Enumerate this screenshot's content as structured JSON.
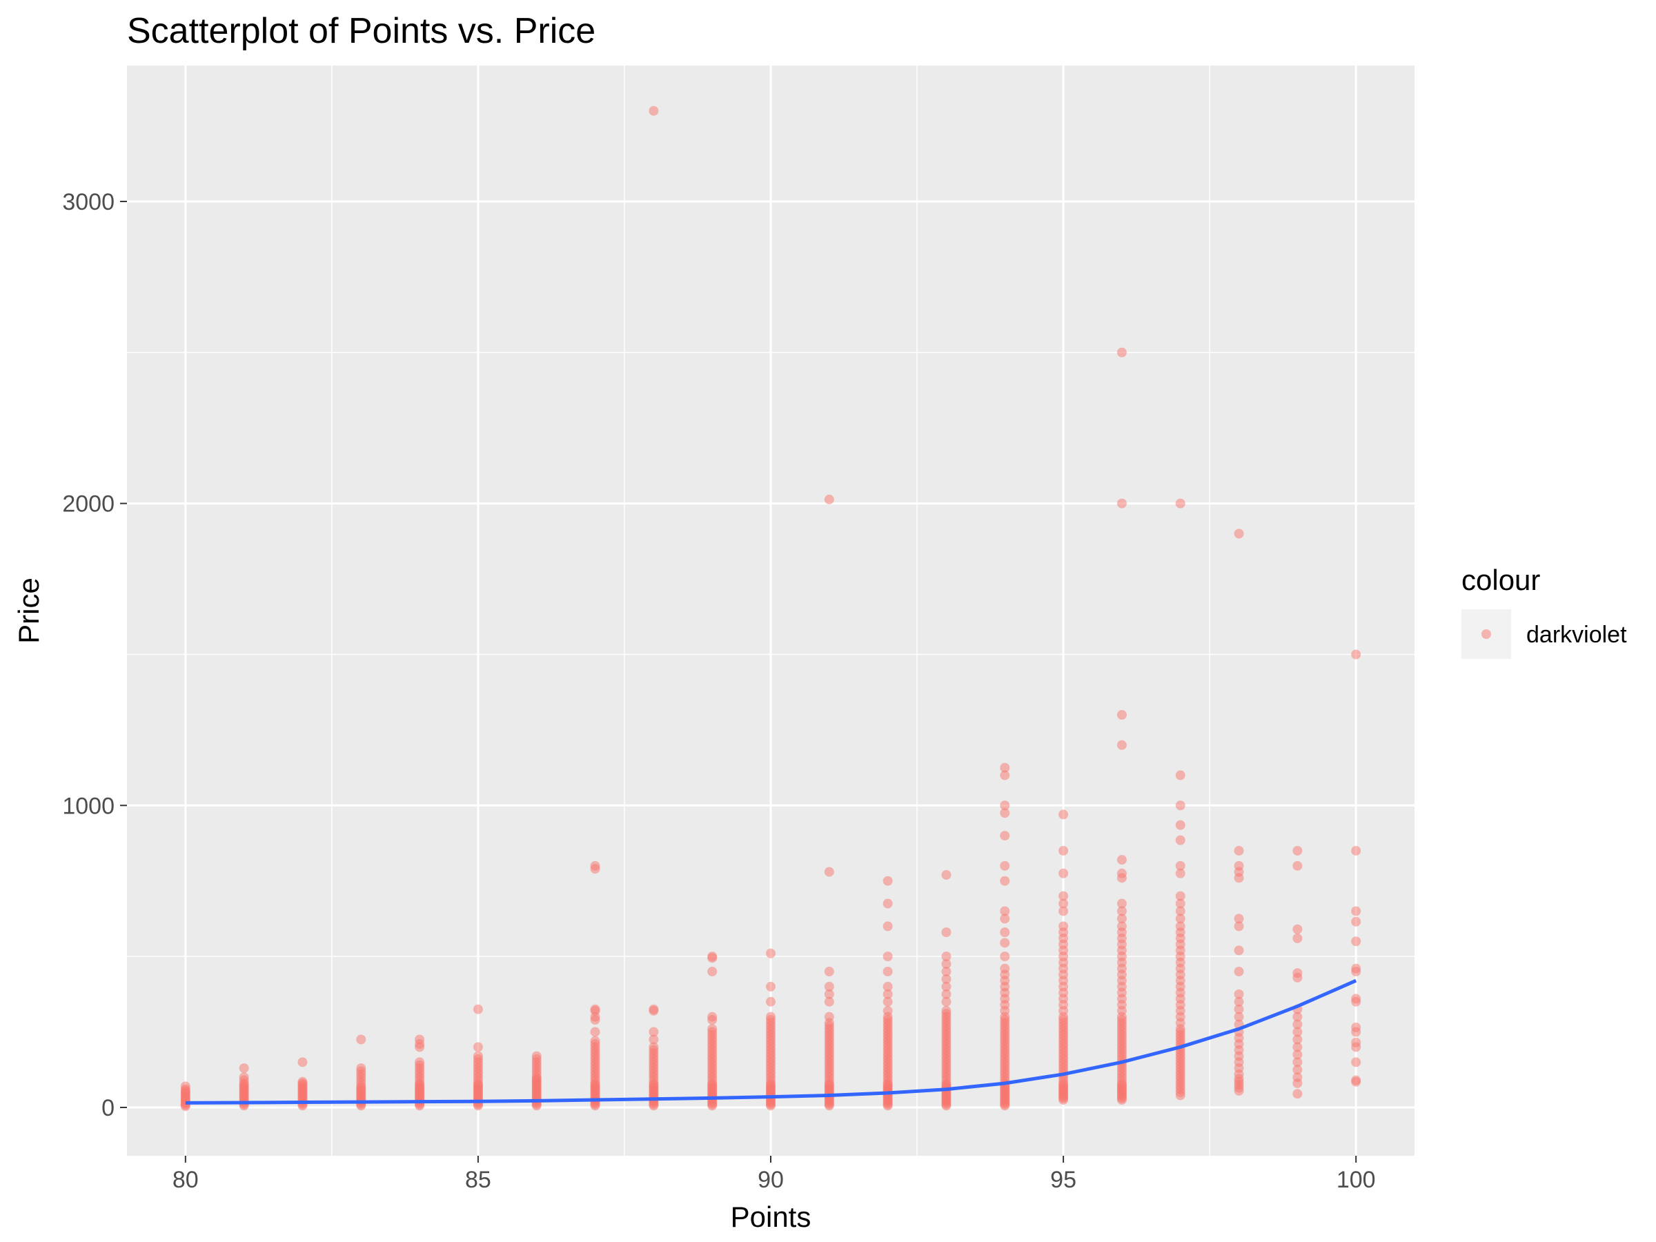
{
  "chart_data": {
    "type": "scatter",
    "title": "Scatterplot of Points vs. Price",
    "xlabel": "Points",
    "ylabel": "Price",
    "xlim": [
      79,
      101
    ],
    "ylim": [
      -160,
      3450
    ],
    "x_ticks": [
      80,
      85,
      90,
      95,
      100
    ],
    "x_tick_labels": [
      "80",
      "85",
      "90",
      "95",
      "100"
    ],
    "y_ticks": [
      0,
      1000,
      2000,
      3000
    ],
    "y_tick_labels": [
      "0",
      "1000",
      "2000",
      "3000"
    ],
    "grid": true,
    "legend": {
      "title": "colour",
      "label": "darkviolet",
      "placement": "right"
    },
    "colors": {
      "points": "#F8766D",
      "smooth_line": "#3366FF",
      "panel": "#EBEBEB",
      "grid": "#FFFFFF"
    },
    "series": [
      {
        "x": 80,
        "y": [
          4,
          8,
          12,
          16,
          20,
          25,
          30,
          35,
          40,
          45,
          50,
          55,
          60,
          70
        ]
      },
      {
        "x": 81,
        "y": [
          6,
          10,
          15,
          20,
          25,
          30,
          35,
          40,
          45,
          50,
          55,
          60,
          65,
          70,
          75,
          80,
          90,
          100,
          130
        ]
      },
      {
        "x": 82,
        "y": [
          6,
          10,
          15,
          20,
          25,
          30,
          35,
          40,
          45,
          50,
          55,
          60,
          65,
          70,
          75,
          80,
          85,
          150
        ]
      },
      {
        "x": 83,
        "y": [
          6,
          10,
          15,
          20,
          25,
          30,
          35,
          40,
          45,
          50,
          55,
          60,
          65,
          70,
          80,
          90,
          100,
          110,
          120,
          130,
          225
        ]
      },
      {
        "x": 84,
        "y": [
          6,
          10,
          15,
          20,
          25,
          30,
          35,
          40,
          45,
          50,
          55,
          60,
          65,
          70,
          75,
          80,
          90,
          100,
          110,
          120,
          130,
          140,
          150,
          200,
          210,
          225
        ]
      },
      {
        "x": 85,
        "y": [
          6,
          10,
          15,
          20,
          25,
          30,
          35,
          40,
          45,
          50,
          55,
          60,
          65,
          70,
          75,
          80,
          90,
          100,
          110,
          120,
          130,
          140,
          150,
          160,
          170,
          200,
          325
        ]
      },
      {
        "x": 86,
        "y": [
          6,
          10,
          15,
          20,
          25,
          30,
          35,
          40,
          45,
          50,
          55,
          60,
          65,
          70,
          75,
          80,
          85,
          90,
          95,
          100,
          110,
          120,
          130,
          140,
          150,
          160,
          170
        ]
      },
      {
        "x": 87,
        "y": [
          6,
          10,
          15,
          20,
          25,
          30,
          35,
          40,
          45,
          50,
          55,
          60,
          65,
          70,
          75,
          80,
          90,
          100,
          110,
          120,
          130,
          140,
          150,
          160,
          170,
          180,
          190,
          200,
          210,
          220,
          250,
          290,
          300,
          320,
          325,
          790,
          800
        ]
      },
      {
        "x": 88,
        "y": [
          6,
          10,
          15,
          20,
          25,
          30,
          35,
          40,
          45,
          50,
          55,
          60,
          65,
          70,
          75,
          80,
          90,
          100,
          110,
          120,
          130,
          140,
          150,
          160,
          170,
          180,
          190,
          200,
          225,
          250,
          320,
          325,
          3300
        ]
      },
      {
        "x": 89,
        "y": [
          6,
          10,
          15,
          20,
          25,
          30,
          35,
          40,
          45,
          50,
          55,
          60,
          65,
          70,
          75,
          80,
          90,
          100,
          110,
          120,
          130,
          140,
          150,
          160,
          170,
          180,
          190,
          200,
          210,
          220,
          230,
          240,
          250,
          260,
          290,
          300,
          450,
          495,
          500
        ]
      },
      {
        "x": 90,
        "y": [
          6,
          10,
          15,
          20,
          25,
          30,
          35,
          40,
          45,
          50,
          55,
          60,
          65,
          70,
          75,
          80,
          90,
          100,
          110,
          120,
          130,
          140,
          150,
          160,
          170,
          180,
          190,
          200,
          210,
          220,
          230,
          240,
          250,
          260,
          270,
          280,
          290,
          300,
          350,
          400,
          510
        ]
      },
      {
        "x": 91,
        "y": [
          6,
          10,
          15,
          20,
          25,
          30,
          35,
          40,
          45,
          50,
          55,
          60,
          65,
          70,
          75,
          80,
          90,
          100,
          110,
          120,
          130,
          140,
          150,
          160,
          170,
          180,
          190,
          200,
          210,
          220,
          230,
          240,
          250,
          260,
          270,
          280,
          300,
          350,
          375,
          400,
          450,
          780,
          2013
        ]
      },
      {
        "x": 92,
        "y": [
          6,
          10,
          15,
          20,
          25,
          30,
          35,
          40,
          45,
          50,
          55,
          60,
          65,
          70,
          75,
          80,
          90,
          100,
          110,
          120,
          130,
          140,
          150,
          160,
          170,
          180,
          190,
          200,
          210,
          220,
          230,
          240,
          250,
          260,
          270,
          280,
          290,
          300,
          320,
          350,
          375,
          400,
          450,
          500,
          600,
          675,
          750
        ]
      },
      {
        "x": 93,
        "y": [
          6,
          10,
          15,
          20,
          25,
          30,
          35,
          40,
          45,
          50,
          55,
          60,
          65,
          70,
          75,
          80,
          90,
          100,
          110,
          120,
          130,
          140,
          150,
          160,
          170,
          180,
          190,
          200,
          210,
          220,
          230,
          240,
          250,
          260,
          270,
          280,
          290,
          300,
          310,
          320,
          350,
          375,
          400,
          425,
          450,
          475,
          500,
          580,
          770
        ]
      },
      {
        "x": 94,
        "y": [
          6,
          10,
          15,
          20,
          25,
          30,
          35,
          40,
          45,
          50,
          55,
          60,
          65,
          70,
          75,
          80,
          90,
          100,
          110,
          120,
          130,
          140,
          150,
          160,
          170,
          180,
          190,
          200,
          210,
          220,
          230,
          240,
          250,
          260,
          270,
          280,
          290,
          300,
          320,
          340,
          360,
          380,
          400,
          420,
          440,
          460,
          500,
          545,
          580,
          625,
          650,
          750,
          800,
          900,
          975,
          1000,
          1100,
          1125
        ]
      },
      {
        "x": 95,
        "y": [
          25,
          30,
          35,
          40,
          45,
          50,
          55,
          60,
          65,
          70,
          75,
          80,
          90,
          100,
          110,
          120,
          130,
          140,
          150,
          160,
          170,
          180,
          190,
          200,
          210,
          220,
          230,
          240,
          250,
          260,
          270,
          280,
          290,
          300,
          320,
          340,
          360,
          380,
          400,
          420,
          440,
          460,
          480,
          500,
          520,
          540,
          560,
          580,
          600,
          650,
          675,
          700,
          775,
          850,
          970
        ]
      },
      {
        "x": 96,
        "y": [
          25,
          30,
          35,
          40,
          45,
          50,
          55,
          60,
          65,
          70,
          75,
          80,
          90,
          100,
          110,
          120,
          130,
          140,
          150,
          160,
          170,
          180,
          190,
          200,
          210,
          220,
          230,
          240,
          250,
          260,
          270,
          280,
          290,
          300,
          320,
          340,
          360,
          380,
          400,
          420,
          440,
          460,
          480,
          500,
          520,
          540,
          560,
          580,
          600,
          625,
          650,
          675,
          760,
          775,
          820,
          1200,
          1300,
          2000,
          2500
        ]
      },
      {
        "x": 97,
        "y": [
          40,
          50,
          60,
          70,
          80,
          90,
          100,
          110,
          120,
          130,
          140,
          150,
          160,
          170,
          180,
          190,
          200,
          210,
          220,
          230,
          240,
          250,
          260,
          280,
          300,
          320,
          340,
          360,
          380,
          400,
          420,
          440,
          460,
          480,
          500,
          520,
          540,
          560,
          580,
          600,
          625,
          650,
          675,
          700,
          775,
          800,
          885,
          935,
          1000,
          1100,
          2000
        ]
      },
      {
        "x": 98,
        "y": [
          55,
          65,
          75,
          85,
          95,
          110,
          130,
          150,
          170,
          190,
          210,
          230,
          250,
          275,
          300,
          325,
          350,
          375,
          450,
          520,
          600,
          625,
          760,
          780,
          800,
          850,
          1900
        ]
      },
      {
        "x": 99,
        "y": [
          45,
          80,
          100,
          125,
          150,
          175,
          200,
          225,
          250,
          275,
          300,
          325,
          430,
          445,
          560,
          590,
          800,
          850
        ]
      },
      {
        "x": 100,
        "y": [
          85,
          90,
          150,
          200,
          215,
          250,
          265,
          350,
          360,
          450,
          460,
          550,
          615,
          650,
          850,
          1500
        ]
      }
    ],
    "smooth": {
      "x": [
        80,
        81,
        82,
        83,
        84,
        85,
        86,
        87,
        88,
        89,
        90,
        91,
        92,
        93,
        94,
        95,
        96,
        97,
        98,
        99,
        100
      ],
      "y": [
        15,
        16,
        17,
        18,
        19,
        20,
        22,
        25,
        28,
        31,
        35,
        40,
        48,
        60,
        80,
        110,
        150,
        200,
        260,
        335,
        420
      ]
    }
  }
}
